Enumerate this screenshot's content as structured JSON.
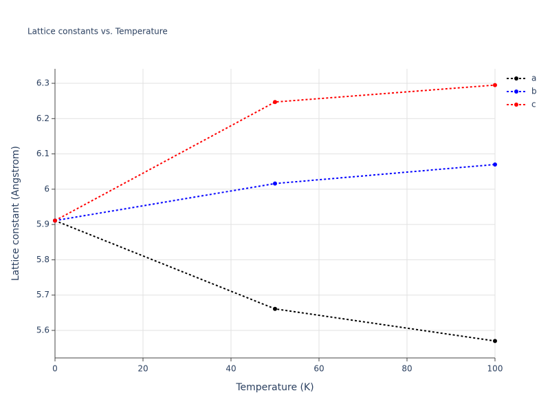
{
  "chart_data": {
    "type": "line",
    "title": "Lattice constants vs. Temperature",
    "x_label": "Temperature (K)",
    "y_label": "Lattice constant (Angstrom)",
    "x": [
      0,
      50,
      100
    ],
    "series": [
      {
        "name": "a",
        "color": "#000000",
        "values": [
          5.911,
          5.661,
          5.57
        ]
      },
      {
        "name": "b",
        "color": "#0000ff",
        "values": [
          5.911,
          6.016,
          6.07
        ]
      },
      {
        "name": "c",
        "color": "#ff0000",
        "values": [
          5.911,
          6.247,
          6.295
        ]
      }
    ],
    "xlim": [
      0,
      100
    ],
    "xticks": [
      0,
      20,
      40,
      60,
      80,
      100
    ],
    "ylim": [
      5.522,
      6.341
    ],
    "yticks": [
      5.6,
      5.7,
      5.8,
      5.9,
      6,
      6.1,
      6.2,
      6.3
    ],
    "grid": true,
    "legend": "right"
  }
}
